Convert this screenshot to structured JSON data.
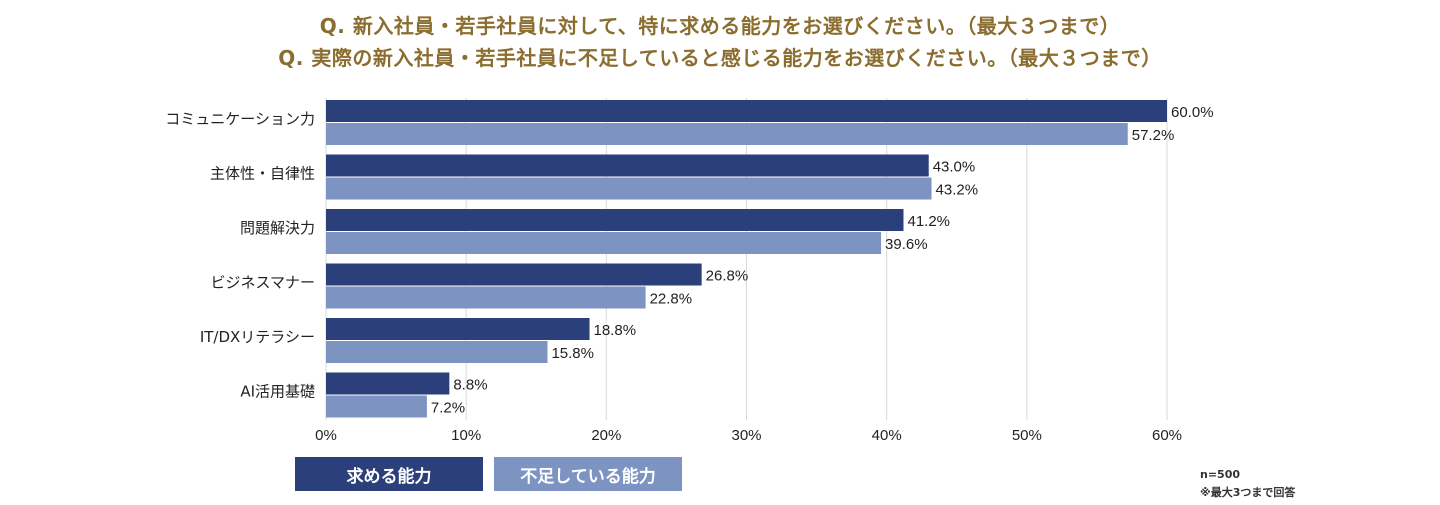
{
  "titles": {
    "line1": "Q. 新入社員・若手社員に対して、特に求める能力をお選びください。（最大３つまで）",
    "line2": "Q. 実際の新入社員・若手社員に不足していると感じる能力をお選びください。（最大３つまで）"
  },
  "legend": {
    "series1": "求める能力",
    "series2": "不足している能力"
  },
  "notes": {
    "n": "n=500",
    "max": "※最大3つまで回答"
  },
  "colors": {
    "series1": "#2b3f7a",
    "series2": "#7d93c2",
    "title": "#8a6d2f",
    "grid": "#d9d9d9"
  },
  "chart_data": {
    "type": "bar",
    "orientation": "horizontal",
    "categories": [
      "コミュニケーション力",
      "主体性・自律性",
      "問題解決力",
      "ビジネスマナー",
      "IT/DXリテラシー",
      "AI活用基礎"
    ],
    "series": [
      {
        "name": "求める能力",
        "values": [
          60.0,
          43.0,
          41.2,
          26.8,
          18.8,
          8.8
        ]
      },
      {
        "name": "不足している能力",
        "values": [
          57.2,
          43.2,
          39.6,
          22.8,
          15.8,
          7.2
        ]
      }
    ],
    "xlim": [
      0,
      60
    ],
    "xticks": [
      "0%",
      "10%",
      "20%",
      "30%",
      "40%",
      "50%",
      "60%"
    ],
    "value_suffix": "%",
    "grid": true,
    "legend_position": "bottom-left"
  }
}
